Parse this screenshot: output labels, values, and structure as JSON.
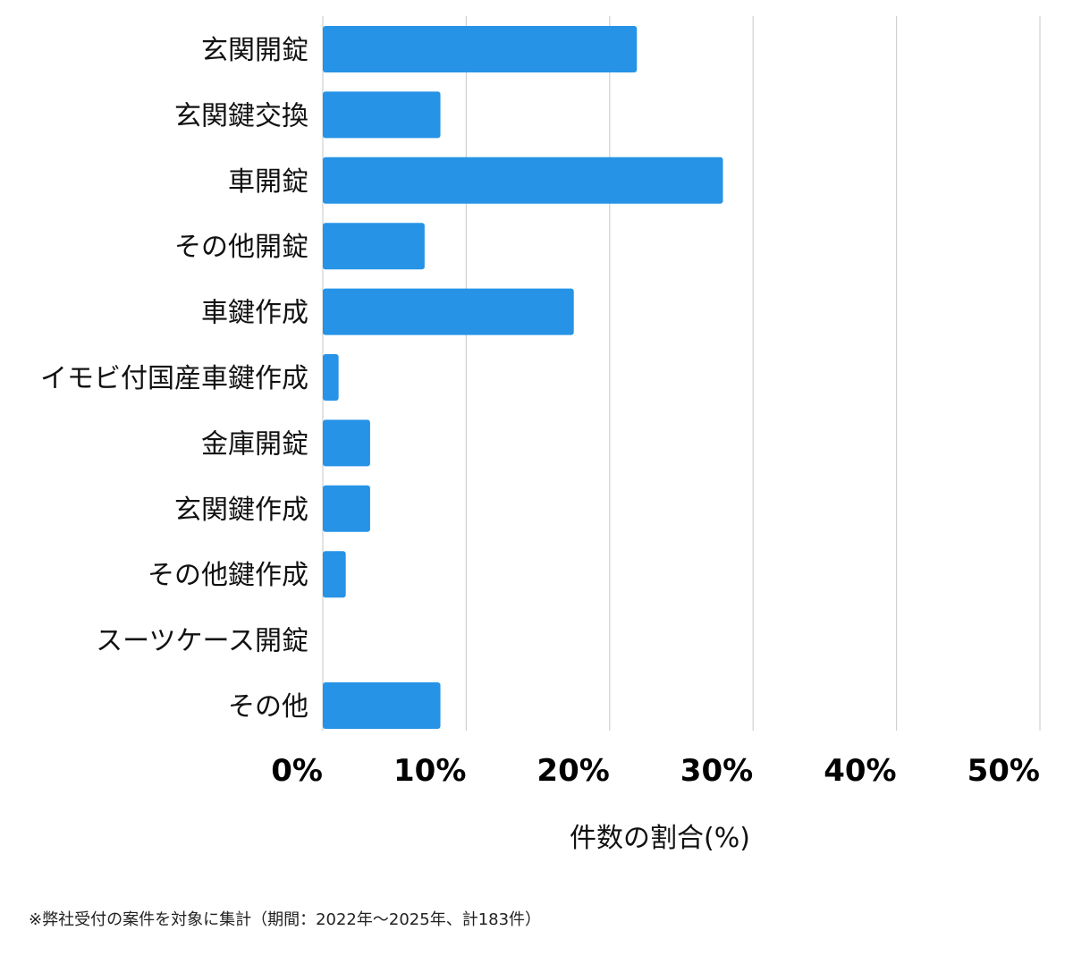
{
  "chart_data": {
    "type": "bar",
    "orientation": "horizontal",
    "categories": [
      "玄関開錠",
      "玄関鍵交換",
      "車開錠",
      "その他開錠",
      "車鍵作成",
      "イモビ付国産車鍵作成",
      "金庫開錠",
      "玄関鍵作成",
      "その他鍵作成",
      "スーツケース開錠",
      "その他"
    ],
    "values": [
      21.9,
      8.2,
      27.9,
      7.1,
      17.5,
      1.1,
      3.3,
      3.3,
      1.6,
      0,
      8.2
    ],
    "xlabel": "件数の割合(%)",
    "xlim": [
      0,
      50
    ],
    "xticks": [
      "0%",
      "10%",
      "20%",
      "30%",
      "40%",
      "50%"
    ],
    "xtick_values": [
      0,
      10,
      20,
      30,
      40,
      50
    ],
    "grid": "vertical",
    "bar_color": "#2693e6",
    "grid_color": "#d0d0d0"
  },
  "footnote": "※弊社受付の案件を対象に集計（期間：2022年〜2025年、計183件）"
}
